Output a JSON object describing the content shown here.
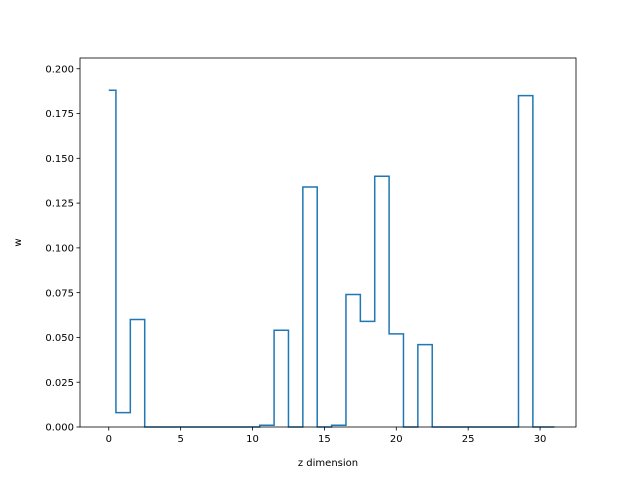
{
  "chart_data": {
    "type": "line",
    "drawstyle": "steps-post",
    "title": "",
    "xlabel": "z dimension",
    "ylabel": "w",
    "xlim": [
      -2,
      32.5
    ],
    "ylim": [
      0,
      0.206
    ],
    "xticks": [
      0,
      5,
      10,
      15,
      20,
      25,
      30
    ],
    "yticks": [
      0.0,
      0.025,
      0.05,
      0.075,
      0.1,
      0.125,
      0.15,
      0.175,
      0.2
    ],
    "ytick_labels": [
      "0.000",
      "0.025",
      "0.050",
      "0.075",
      "0.100",
      "0.125",
      "0.150",
      "0.175",
      "0.200"
    ],
    "grid": false,
    "legend": null,
    "series": [
      {
        "color": "#1f77b4",
        "x": [
          0,
          0.5,
          1.5,
          2.5,
          3.5,
          4.5,
          5.5,
          6.5,
          7.5,
          8.5,
          9.5,
          10.5,
          11.5,
          12.5,
          13.5,
          14.5,
          15.5,
          16.5,
          17.5,
          18.5,
          19.5,
          20.5,
          21.5,
          22.5,
          23.5,
          24.5,
          25.5,
          26.5,
          27.5,
          28.5,
          29.5,
          30.5,
          31
        ],
        "values": [
          0.188,
          0.008,
          0.06,
          0.0,
          0.0,
          0.0,
          0.0,
          0.0,
          0.0,
          0.0,
          0.0,
          0.001,
          0.054,
          0.0,
          0.134,
          0.0,
          0.001,
          0.074,
          0.059,
          0.14,
          0.052,
          0.0,
          0.046,
          0.0,
          0.0,
          0.0,
          0.0,
          0.0,
          0.0,
          0.185,
          0.0,
          0.0,
          0.0
        ]
      }
    ]
  }
}
